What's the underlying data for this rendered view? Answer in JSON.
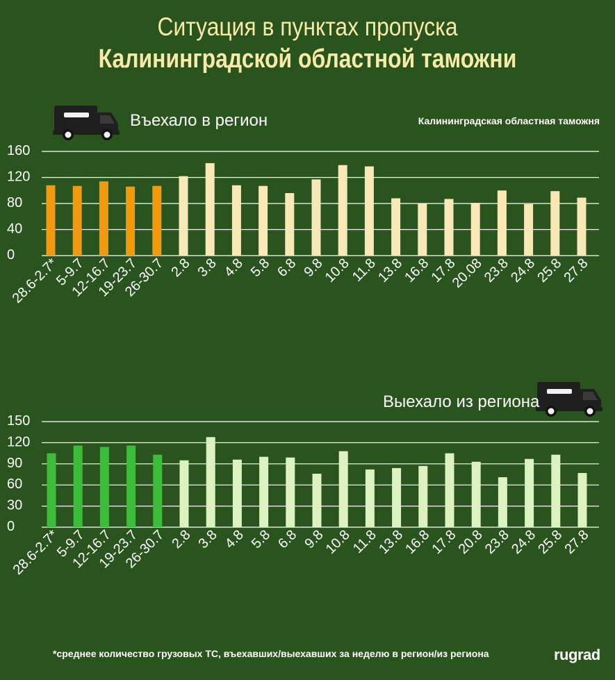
{
  "header": {
    "title_line1": "Ситуация в пунктах пропуска",
    "title_line2": "Калининградской областной таможни"
  },
  "source": "Калининградская областная таможня",
  "footnote": "*среднее количество грузовых ТС, въехавших/выехавших за неделю в регион/из региона",
  "brand": "rugrad",
  "icons": {
    "truck": "truck-icon"
  },
  "colors": {
    "background": "#2a541d",
    "title": "#f6eaa6",
    "entered_weekly": "#f29a0f",
    "entered_daily": "#f7e8b6",
    "exited_weekly": "#3dbb3a",
    "exited_daily": "#dcf2c0",
    "grid": "#ffffff",
    "text": "#ffffff"
  },
  "chart_data": [
    {
      "type": "bar",
      "title": "Въехало в регион",
      "categories": [
        "28.6-2.7*",
        "5-9.7",
        "12-16.7",
        "19-23.7",
        "26-30.7",
        "2.8",
        "3.8",
        "4.8",
        "5.8",
        "6.8",
        "9.8",
        "10.8",
        "11.8",
        "13.8",
        "16.8",
        "17.8",
        "20.08",
        "23.8",
        "24.8",
        "25.8",
        "27.8"
      ],
      "series": [
        {
          "values": [
            108,
            107,
            114,
            106,
            107,
            null,
            null,
            null,
            null,
            null,
            null,
            null,
            null,
            null,
            null,
            null,
            null,
            null,
            null,
            null,
            null
          ]
        },
        {
          "values": [
            null,
            null,
            null,
            null,
            null,
            122,
            142,
            108,
            107,
            96,
            117,
            139,
            137,
            88,
            80,
            87,
            81,
            100,
            79,
            99,
            89
          ]
        }
      ],
      "yticks": [
        0,
        40,
        80,
        120,
        160
      ],
      "ylim": [
        0,
        160
      ],
      "grid": true
    },
    {
      "type": "bar",
      "title": "Выехало из региона",
      "categories": [
        "28.6-2.7*",
        "5-9.7",
        "12-16.7",
        "19-23.7",
        "26-30.7",
        "2.8",
        "3.8",
        "4.8",
        "5.8",
        "6.8",
        "9.8",
        "10.8",
        "11.8",
        "13.8",
        "16.8",
        "17.8",
        "20.8",
        "23.8",
        "24.8",
        "25.8",
        "27.8"
      ],
      "series": [
        {
          "values": [
            105,
            116,
            114,
            116,
            103,
            null,
            null,
            null,
            null,
            null,
            null,
            null,
            null,
            null,
            null,
            null,
            null,
            null,
            null,
            null,
            null
          ]
        },
        {
          "values": [
            null,
            null,
            null,
            null,
            null,
            95,
            128,
            96,
            100,
            99,
            76,
            108,
            82,
            84,
            87,
            105,
            93,
            71,
            97,
            103,
            77
          ]
        }
      ],
      "yticks": [
        0,
        30,
        60,
        90,
        120,
        150
      ],
      "ylim": [
        0,
        150
      ],
      "grid": true
    }
  ]
}
